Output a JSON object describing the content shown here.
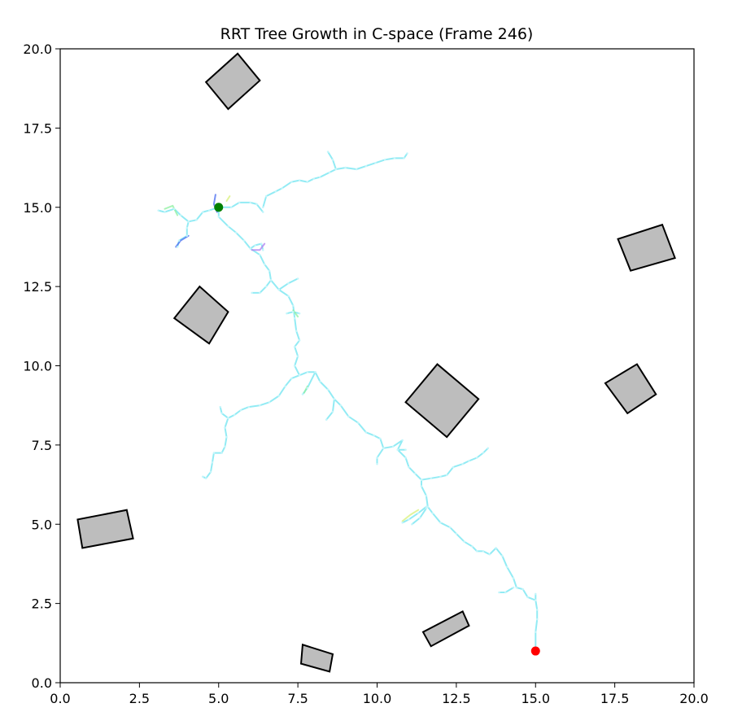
{
  "chart_data": {
    "type": "scatter",
    "title": "RRT Tree Growth in C-space (Frame 246)",
    "xlabel": "",
    "ylabel": "",
    "xlim": [
      0,
      20
    ],
    "ylim": [
      0,
      20
    ],
    "xticks": [
      "0.0",
      "2.5",
      "5.0",
      "7.5",
      "10.0",
      "12.5",
      "15.0",
      "17.5",
      "20.0"
    ],
    "yticks": [
      "0.0",
      "2.5",
      "5.0",
      "7.5",
      "10.0",
      "12.5",
      "15.0",
      "17.5",
      "20.0"
    ],
    "grid": false,
    "colors": {
      "tree": "#7fe8f2",
      "tree_accent_blue": "#4a6cf0",
      "tree_accent_purple": "#b07cf0",
      "tree_accent_green": "#8ef0a0",
      "tree_accent_yellow": "#d8f07a",
      "obstacle_fill": "#bdbdbd",
      "obstacle_edge": "#000000",
      "start": "#008000",
      "goal": "#ff0000"
    },
    "start": {
      "x": 5.0,
      "y": 15.0
    },
    "goal": {
      "x": 15.0,
      "y": 1.0
    },
    "obstacles": [
      [
        [
          5.6,
          19.85
        ],
        [
          6.3,
          19.0
        ],
        [
          5.3,
          18.1
        ],
        [
          4.6,
          18.95
        ]
      ],
      [
        [
          4.4,
          12.5
        ],
        [
          5.3,
          11.7
        ],
        [
          4.7,
          10.7
        ],
        [
          3.6,
          11.5
        ]
      ],
      [
        [
          11.9,
          10.05
        ],
        [
          13.2,
          8.95
        ],
        [
          12.2,
          7.75
        ],
        [
          10.9,
          8.85
        ]
      ],
      [
        [
          19.0,
          14.45
        ],
        [
          19.4,
          13.4
        ],
        [
          18.0,
          13.0
        ],
        [
          17.6,
          14.0
        ]
      ],
      [
        [
          18.2,
          10.05
        ],
        [
          18.8,
          9.1
        ],
        [
          17.9,
          8.5
        ],
        [
          17.2,
          9.45
        ]
      ],
      [
        [
          2.1,
          5.45
        ],
        [
          2.3,
          4.55
        ],
        [
          0.7,
          4.25
        ],
        [
          0.55,
          5.15
        ]
      ],
      [
        [
          12.7,
          2.25
        ],
        [
          12.9,
          1.8
        ],
        [
          11.7,
          1.15
        ],
        [
          11.45,
          1.6
        ]
      ],
      [
        [
          7.65,
          1.2
        ],
        [
          8.6,
          0.9
        ],
        [
          8.5,
          0.35
        ],
        [
          7.6,
          0.6
        ]
      ]
    ],
    "tree": {
      "main": [
        [
          5.0,
          15.0
        ],
        [
          5.0,
          14.7
        ],
        [
          5.3,
          14.4
        ],
        [
          5.55,
          14.2
        ],
        [
          5.8,
          13.95
        ],
        [
          6.0,
          13.7
        ],
        [
          6.3,
          13.5
        ],
        [
          6.45,
          13.2
        ],
        [
          6.6,
          13.0
        ],
        [
          6.65,
          12.7
        ],
        [
          6.9,
          12.4
        ],
        [
          7.2,
          12.2
        ],
        [
          7.35,
          11.9
        ],
        [
          7.4,
          11.5
        ],
        [
          7.45,
          11.1
        ],
        [
          7.55,
          10.8
        ],
        [
          7.4,
          10.6
        ],
        [
          7.5,
          10.3
        ],
        [
          7.4,
          10.0
        ],
        [
          7.55,
          9.7
        ],
        [
          7.8,
          9.8
        ],
        [
          8.05,
          9.8
        ],
        [
          8.2,
          9.5
        ],
        [
          8.45,
          9.25
        ],
        [
          8.65,
          8.95
        ],
        [
          8.85,
          8.75
        ],
        [
          9.1,
          8.4
        ],
        [
          9.4,
          8.2
        ],
        [
          9.65,
          7.9
        ],
        [
          9.9,
          7.8
        ],
        [
          10.1,
          7.7
        ],
        [
          10.2,
          7.4
        ],
        [
          10.5,
          7.45
        ],
        [
          10.8,
          7.65
        ],
        [
          10.65,
          7.35
        ],
        [
          10.9,
          7.1
        ],
        [
          11.0,
          6.8
        ],
        [
          11.2,
          6.6
        ],
        [
          11.4,
          6.4
        ],
        [
          11.4,
          6.2
        ],
        [
          11.55,
          5.9
        ],
        [
          11.6,
          5.55
        ],
        [
          11.75,
          5.35
        ],
        [
          12.0,
          5.05
        ],
        [
          12.3,
          4.9
        ],
        [
          12.5,
          4.7
        ],
        [
          12.75,
          4.45
        ],
        [
          13.0,
          4.3
        ],
        [
          13.15,
          4.15
        ],
        [
          13.35,
          4.15
        ],
        [
          13.55,
          4.05
        ],
        [
          13.75,
          4.25
        ],
        [
          13.95,
          4.0
        ],
        [
          14.1,
          3.65
        ],
        [
          14.3,
          3.3
        ],
        [
          14.4,
          3.0
        ],
        [
          14.6,
          2.95
        ],
        [
          14.75,
          2.7
        ],
        [
          15.0,
          2.6
        ],
        [
          15.05,
          2.3
        ],
        [
          15.05,
          2.0
        ],
        [
          15.0,
          1.6
        ],
        [
          15.0,
          1.0
        ]
      ],
      "branches": [
        [
          [
            5.0,
            15.0
          ],
          [
            5.4,
            15.0
          ],
          [
            5.65,
            15.15
          ],
          [
            6.0,
            15.15
          ],
          [
            6.2,
            15.1
          ],
          [
            6.4,
            14.85
          ]
        ],
        [
          [
            6.4,
            15.0
          ],
          [
            6.5,
            15.35
          ],
          [
            6.8,
            15.5
          ],
          [
            7.0,
            15.6
          ],
          [
            7.3,
            15.8
          ],
          [
            7.55,
            15.85
          ],
          [
            7.8,
            15.8
          ],
          [
            8.0,
            15.9
          ],
          [
            8.2,
            15.95
          ],
          [
            8.5,
            16.1
          ],
          [
            8.7,
            16.2
          ],
          [
            8.6,
            16.5
          ],
          [
            8.45,
            16.75
          ]
        ],
        [
          [
            8.7,
            16.2
          ],
          [
            9.0,
            16.25
          ],
          [
            9.35,
            16.2
          ],
          [
            9.65,
            16.3
          ],
          [
            9.95,
            16.4
          ],
          [
            10.25,
            16.5
          ],
          [
            10.55,
            16.55
          ],
          [
            10.85,
            16.55
          ],
          [
            10.95,
            16.7
          ]
        ],
        [
          [
            5.0,
            15.0
          ],
          [
            4.7,
            14.9
          ],
          [
            4.5,
            14.85
          ],
          [
            4.3,
            14.6
          ],
          [
            4.05,
            14.55
          ],
          [
            3.8,
            14.75
          ],
          [
            3.6,
            14.95
          ],
          [
            3.3,
            14.85
          ],
          [
            3.1,
            14.9
          ]
        ],
        [
          [
            4.05,
            14.55
          ],
          [
            4.0,
            14.35
          ],
          [
            4.0,
            14.1
          ],
          [
            3.75,
            13.95
          ],
          [
            3.7,
            13.75
          ]
        ],
        [
          [
            6.0,
            13.7
          ],
          [
            6.15,
            13.8
          ],
          [
            6.35,
            13.85
          ],
          [
            6.4,
            13.65
          ]
        ],
        [
          [
            6.65,
            12.7
          ],
          [
            6.5,
            12.5
          ],
          [
            6.3,
            12.3
          ],
          [
            6.05,
            12.3
          ]
        ],
        [
          [
            6.9,
            12.4
          ],
          [
            7.2,
            12.6
          ],
          [
            7.5,
            12.75
          ]
        ],
        [
          [
            7.15,
            11.65
          ],
          [
            7.35,
            11.7
          ],
          [
            7.55,
            11.65
          ]
        ],
        [
          [
            7.55,
            9.7
          ],
          [
            7.3,
            9.6
          ],
          [
            7.1,
            9.35
          ],
          [
            6.9,
            9.05
          ],
          [
            6.6,
            8.85
          ],
          [
            6.3,
            8.75
          ],
          [
            5.95,
            8.7
          ],
          [
            5.7,
            8.6
          ],
          [
            5.5,
            8.45
          ],
          [
            5.3,
            8.35
          ]
        ],
        [
          [
            5.3,
            8.35
          ],
          [
            5.2,
            8.05
          ],
          [
            5.25,
            7.75
          ],
          [
            5.2,
            7.45
          ],
          [
            5.1,
            7.25
          ],
          [
            4.85,
            7.25
          ],
          [
            4.8,
            6.95
          ],
          [
            4.75,
            6.65
          ],
          [
            4.6,
            6.45
          ],
          [
            4.5,
            6.5
          ]
        ],
        [
          [
            5.3,
            8.35
          ],
          [
            5.1,
            8.5
          ],
          [
            5.05,
            8.7
          ]
        ],
        [
          [
            8.05,
            9.8
          ],
          [
            7.8,
            9.3
          ],
          [
            7.65,
            9.1
          ]
        ],
        [
          [
            8.65,
            8.95
          ],
          [
            8.6,
            8.55
          ],
          [
            8.4,
            8.3
          ]
        ],
        [
          [
            10.2,
            7.4
          ],
          [
            10.0,
            7.1
          ],
          [
            10.0,
            6.9
          ]
        ],
        [
          [
            10.65,
            7.35
          ],
          [
            10.9,
            7.35
          ]
        ],
        [
          [
            11.4,
            6.4
          ],
          [
            11.7,
            6.45
          ],
          [
            12.0,
            6.5
          ],
          [
            12.2,
            6.55
          ],
          [
            12.4,
            6.8
          ],
          [
            12.7,
            6.9
          ],
          [
            12.9,
            7.0
          ],
          [
            13.15,
            7.1
          ],
          [
            13.35,
            7.25
          ],
          [
            13.5,
            7.4
          ]
        ],
        [
          [
            11.55,
            5.55
          ],
          [
            11.3,
            5.35
          ],
          [
            11.0,
            5.15
          ],
          [
            10.8,
            5.05
          ]
        ],
        [
          [
            11.55,
            5.5
          ],
          [
            11.35,
            5.2
          ],
          [
            11.1,
            5.0
          ]
        ],
        [
          [
            14.3,
            3.0
          ],
          [
            14.05,
            2.85
          ],
          [
            13.85,
            2.85
          ]
        ],
        [
          [
            15.0,
            2.6
          ],
          [
            15.0,
            2.8
          ]
        ]
      ],
      "accents": [
        {
          "color": "tree_accent_blue",
          "points": [
            [
              4.9,
              15.4
            ],
            [
              4.85,
              15.1
            ],
            [
              4.95,
              14.85
            ]
          ]
        },
        {
          "color": "tree_accent_blue",
          "points": [
            [
              4.05,
              14.1
            ],
            [
              3.8,
              13.95
            ],
            [
              3.65,
              13.75
            ]
          ]
        },
        {
          "color": "tree_accent_purple",
          "points": [
            [
              6.05,
              13.65
            ],
            [
              6.3,
              13.65
            ],
            [
              6.45,
              13.85
            ]
          ]
        },
        {
          "color": "tree_accent_green",
          "points": [
            [
              3.3,
              14.95
            ],
            [
              3.55,
              15.05
            ],
            [
              3.7,
              14.75
            ]
          ]
        },
        {
          "color": "tree_accent_yellow",
          "points": [
            [
              10.8,
              5.1
            ],
            [
              11.05,
              5.3
            ],
            [
              11.3,
              5.45
            ]
          ]
        },
        {
          "color": "tree_accent_yellow",
          "points": [
            [
              5.25,
              15.2
            ],
            [
              5.35,
              15.35
            ]
          ]
        },
        {
          "color": "tree_accent_green",
          "points": [
            [
              7.8,
              9.35
            ],
            [
              7.7,
              9.15
            ]
          ]
        },
        {
          "color": "tree_accent_green",
          "points": [
            [
              7.35,
              11.75
            ],
            [
              7.5,
              11.55
            ]
          ]
        }
      ]
    }
  }
}
